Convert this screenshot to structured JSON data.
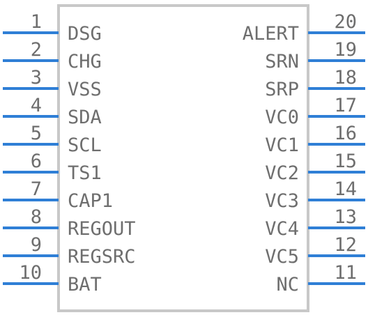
{
  "body_color": "#c8c8c8",
  "pin_color": "#2f7fd6",
  "text_color": "#6e6e6e",
  "left_pins": [
    {
      "number": "1",
      "name": "DSG"
    },
    {
      "number": "2",
      "name": "CHG"
    },
    {
      "number": "3",
      "name": "VSS"
    },
    {
      "number": "4",
      "name": "SDA"
    },
    {
      "number": "5",
      "name": "SCL"
    },
    {
      "number": "6",
      "name": "TS1"
    },
    {
      "number": "7",
      "name": "CAP1"
    },
    {
      "number": "8",
      "name": "REGOUT"
    },
    {
      "number": "9",
      "name": "REGSRC"
    },
    {
      "number": "10",
      "name": "BAT"
    }
  ],
  "right_pins": [
    {
      "number": "20",
      "name": "ALERT"
    },
    {
      "number": "19",
      "name": "SRN"
    },
    {
      "number": "18",
      "name": "SRP"
    },
    {
      "number": "17",
      "name": "VC0"
    },
    {
      "number": "16",
      "name": "VC1"
    },
    {
      "number": "15",
      "name": "VC2"
    },
    {
      "number": "14",
      "name": "VC3"
    },
    {
      "number": "13",
      "name": "VC4"
    },
    {
      "number": "12",
      "name": "VC5"
    },
    {
      "number": "11",
      "name": "NC"
    }
  ]
}
